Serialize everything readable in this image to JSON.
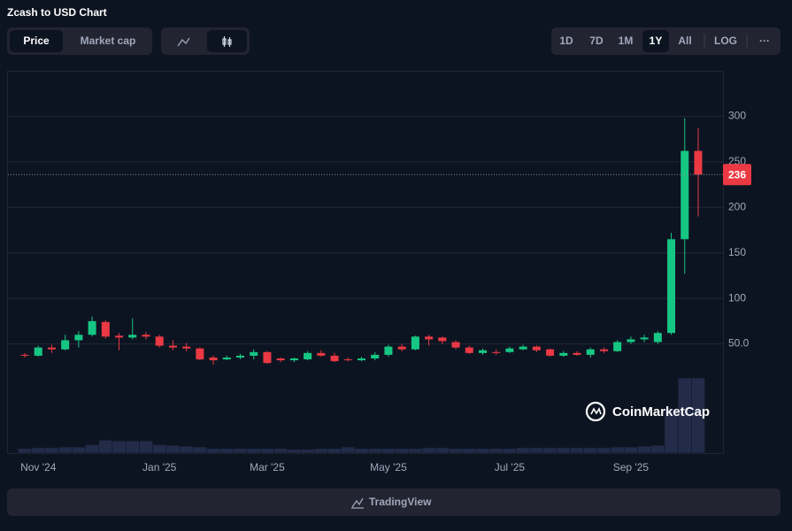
{
  "chart_data": {
    "type": "candlestick",
    "title": "Zcash to USD Chart",
    "categories": [
      null,
      "Nov '24",
      null,
      null,
      null,
      null,
      null,
      null,
      null,
      null,
      "Jan '25",
      null,
      null,
      null,
      null,
      null,
      null,
      null,
      "Mar '25",
      null,
      null,
      null,
      null,
      null,
      null,
      null,
      null,
      "May '25",
      null,
      null,
      null,
      null,
      null,
      null,
      null,
      null,
      "Jul '25",
      null,
      null,
      null,
      null,
      null,
      null,
      null,
      null,
      "Sep '25",
      null,
      null,
      null,
      null,
      null
    ],
    "open": [
      38,
      37,
      46,
      44,
      54,
      60,
      74,
      59,
      57,
      60,
      58,
      48,
      47,
      45,
      35,
      33,
      35,
      37,
      41,
      34,
      32,
      33,
      40,
      37,
      33,
      32,
      34,
      38,
      47,
      44,
      58,
      57,
      52,
      46,
      40,
      41,
      41,
      44,
      47,
      44,
      37,
      40,
      38,
      44,
      42,
      52,
      55,
      52,
      62,
      165,
      262
    ],
    "high": [
      40,
      48,
      49,
      60,
      64,
      80,
      76,
      62,
      78,
      63,
      60,
      54,
      51,
      46,
      37,
      37,
      39,
      44,
      42,
      35,
      35,
      42,
      43,
      40,
      35,
      36,
      41,
      49,
      50,
      59,
      60,
      58,
      54,
      48,
      45,
      44,
      47,
      49,
      48,
      45,
      42,
      42,
      46,
      46,
      54,
      58,
      60,
      64,
      172,
      298,
      287
    ],
    "low": [
      35,
      36,
      40,
      43,
      46,
      58,
      56,
      43,
      55,
      55,
      46,
      43,
      42,
      32,
      27,
      32,
      33,
      33,
      28,
      30,
      30,
      32,
      36,
      30,
      31,
      31,
      32,
      36,
      42,
      43,
      48,
      50,
      44,
      39,
      38,
      38,
      40,
      43,
      41,
      36,
      36,
      37,
      35,
      40,
      41,
      50,
      52,
      50,
      60,
      127,
      190
    ],
    "close": [
      37,
      46,
      44,
      54,
      60,
      75,
      58,
      57,
      60,
      58,
      48,
      46,
      45,
      33,
      32,
      35,
      37,
      41,
      29,
      32,
      34,
      40,
      37,
      31,
      32,
      34,
      38,
      47,
      44,
      58,
      55,
      53,
      46,
      40,
      43,
      40,
      45,
      47,
      43,
      37,
      40,
      38,
      44,
      42,
      52,
      55,
      57,
      62,
      165,
      262,
      236
    ],
    "volume": [
      6,
      7,
      7,
      8,
      8,
      11,
      17,
      16,
      16,
      16,
      11,
      10,
      9,
      8,
      6,
      6,
      6,
      6,
      6,
      6,
      5,
      5,
      6,
      6,
      8,
      6,
      6,
      6,
      6,
      6,
      7,
      7,
      6,
      6,
      6,
      6,
      6,
      7,
      7,
      7,
      7,
      7,
      7,
      7,
      8,
      8,
      9,
      10,
      58,
      98,
      98
    ],
    "up_color": "#16c784",
    "down_color": "#ea3943",
    "volume_color": "#222b48",
    "ylim": [
      -70,
      350
    ],
    "yticks": [
      {
        "value": 50,
        "label": "50.0"
      },
      100,
      150,
      200,
      250,
      300
    ],
    "grid": true,
    "last_price": 236,
    "watermark": "CoinMarketCap"
  },
  "ui": {
    "tabs": [
      "Price",
      "Market cap"
    ],
    "ranges": [
      "1D",
      "7D",
      "1M",
      "1Y",
      "All",
      "LOG"
    ],
    "more": "···",
    "footer_button": "TradingView"
  }
}
